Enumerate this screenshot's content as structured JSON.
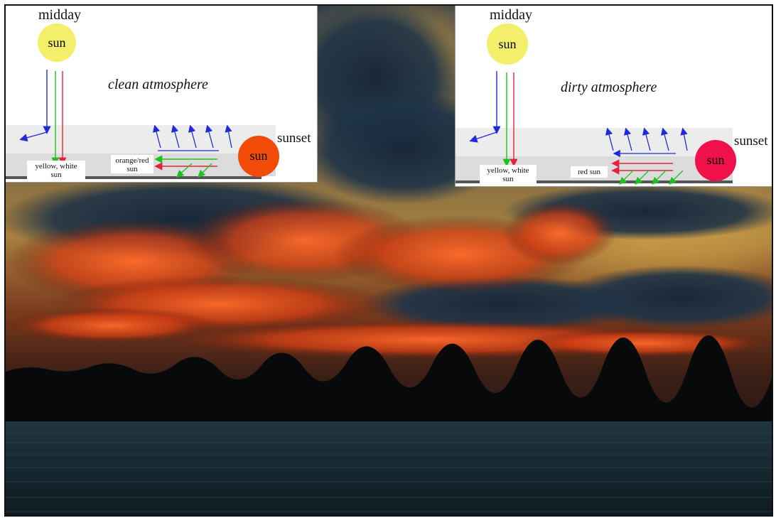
{
  "photo": {
    "description_colors": {
      "sky_top": "#b59a5a",
      "cloud_dark": "#1f2f3f",
      "cloud_glow": "#ff4a1c",
      "treeline": "#0a0c0e",
      "water": "#1a2b33"
    }
  },
  "panels": {
    "clean": {
      "midday_label": "midday",
      "sun_label": "sun",
      "title": "clean atmosphere",
      "sunset_label": "sunset",
      "sunset_sun_label": "sun",
      "midday_result": "yellow, white\nsun",
      "sunset_result": "orange/red\nsun",
      "sunset_sun_color": "#f24b0a",
      "midday_sun_color": "#f4ef6a"
    },
    "dirty": {
      "midday_label": "midday",
      "sun_label": "sun",
      "title": "dirty atmosphere",
      "sunset_label": "sunset",
      "sunset_sun_label": "sun",
      "midday_result": "yellow, white\nsun",
      "sunset_result": "red sun",
      "sunset_sun_color": "#f0104a",
      "midday_sun_color": "#f4ef6a"
    }
  },
  "arrow_colors": {
    "blue": "#1f2bd6",
    "green": "#1ec21e",
    "red": "#e0243c"
  }
}
